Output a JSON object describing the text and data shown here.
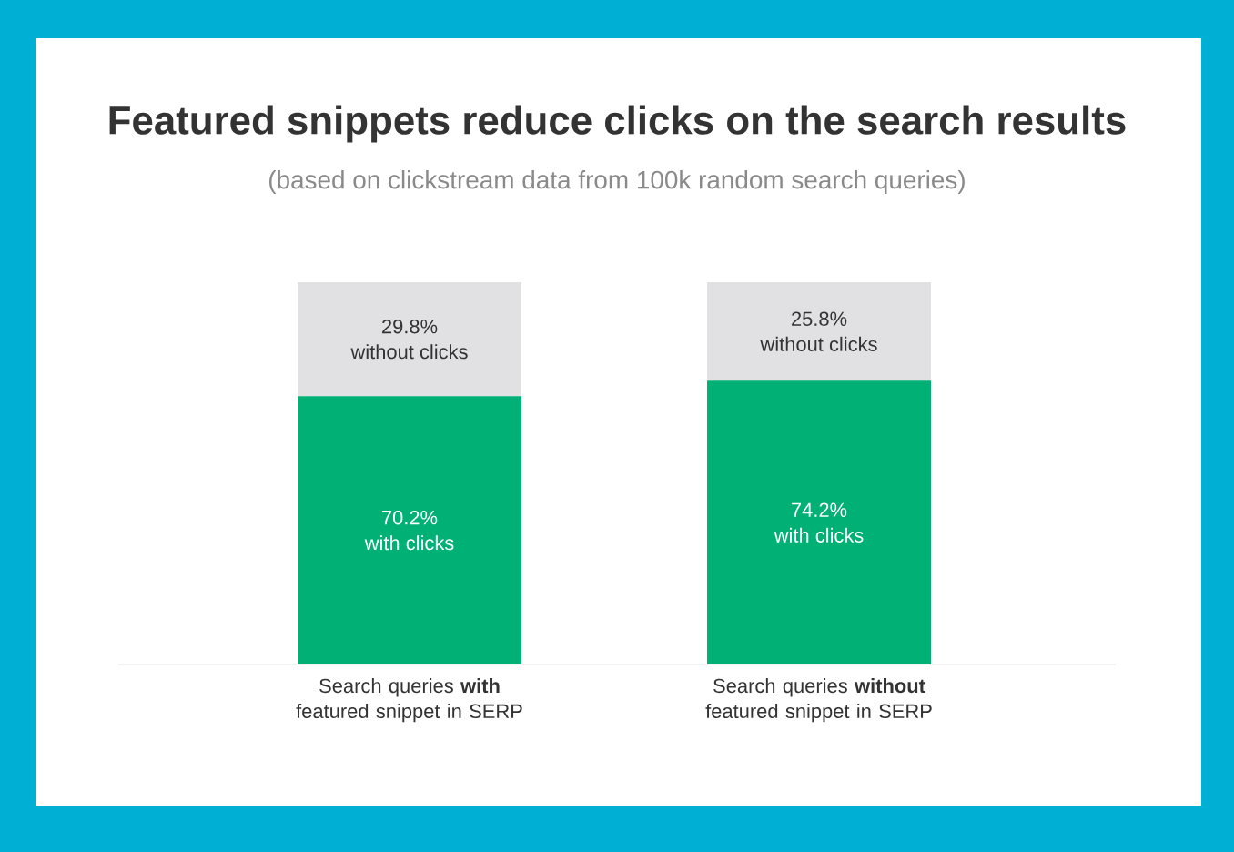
{
  "chart_data": {
    "type": "bar",
    "stacked": true,
    "title": "Featured snippets reduce clicks on the search results",
    "subtitle": "(based on clickstream data from 100k random search queries)",
    "categories": [
      "Search queries **with** featured snippet in SERP",
      "Search queries **without** featured snippet in SERP"
    ],
    "series": [
      {
        "name": "with clicks",
        "color": "#00b074",
        "values": [
          70.2,
          74.2
        ],
        "value_labels": [
          "70.2%",
          "74.2%"
        ]
      },
      {
        "name": "without clicks",
        "color": "#e1e1e4",
        "values": [
          29.8,
          25.8
        ],
        "value_labels": [
          "29.8%",
          "25.8%"
        ]
      }
    ]
  }
}
